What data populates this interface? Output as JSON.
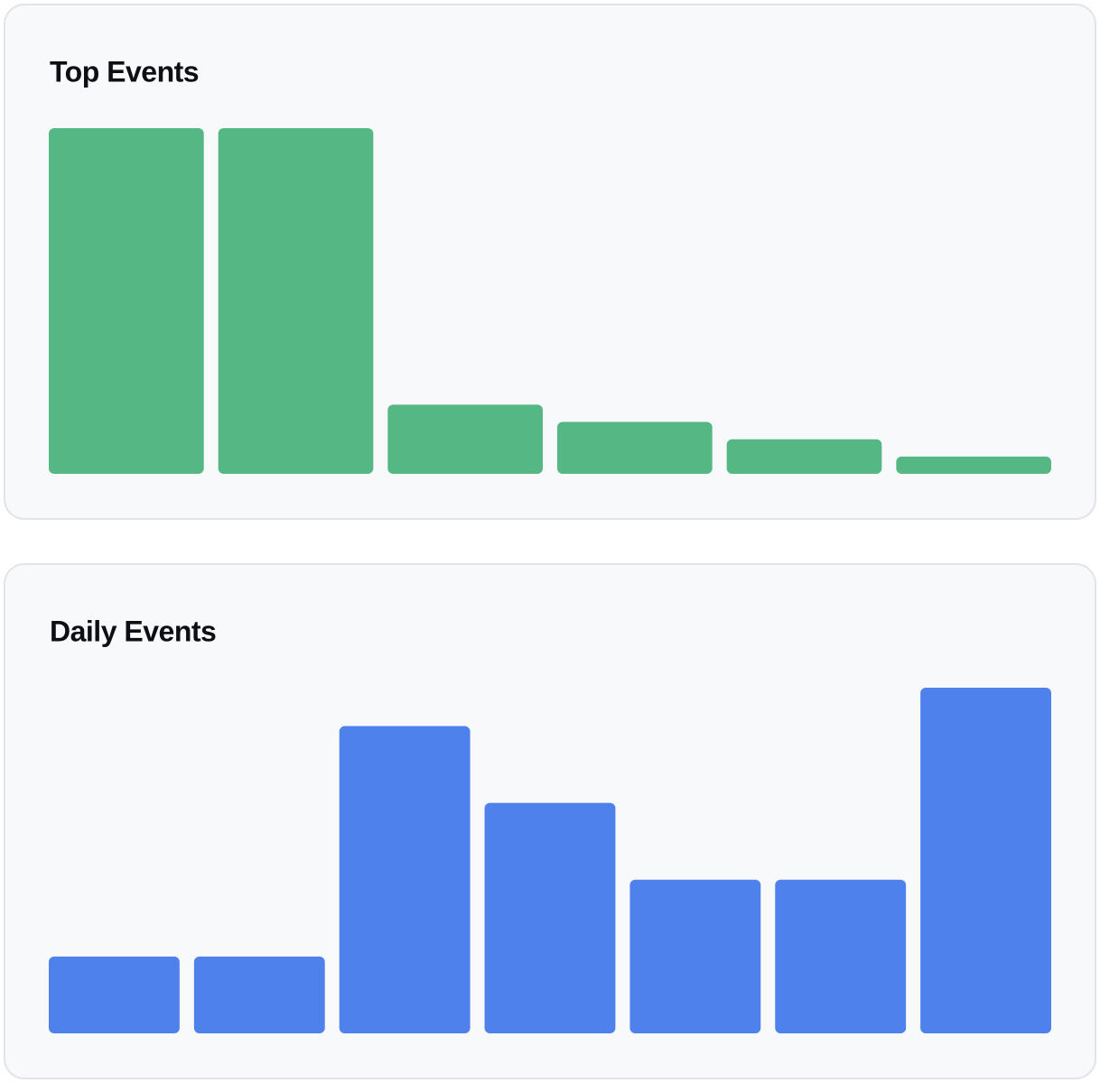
{
  "chart_data": [
    {
      "type": "bar",
      "title": "Top Events",
      "values": [
        20,
        20,
        4,
        3,
        2,
        1
      ],
      "color": "#54b784"
    },
    {
      "type": "bar",
      "title": "Daily Events",
      "values": [
        2,
        2,
        8,
        6,
        4,
        4,
        9
      ],
      "color": "#4f81ec"
    }
  ]
}
